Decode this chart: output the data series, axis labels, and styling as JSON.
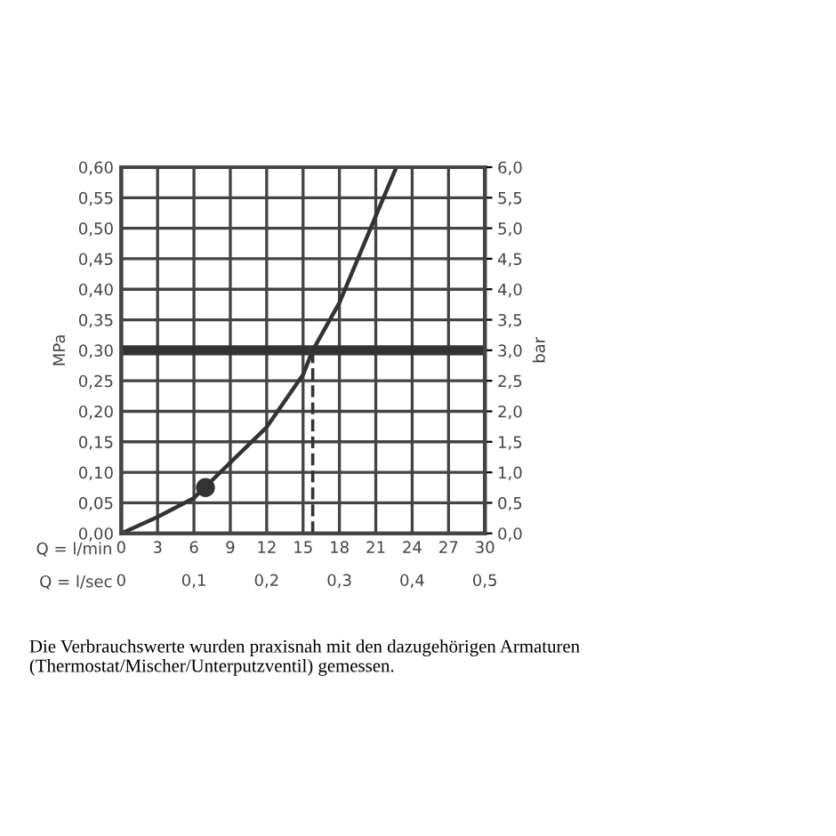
{
  "chart_data": {
    "type": "line",
    "xlabel": "Q = l/min",
    "x2label": "Q = l/sec",
    "ylabel": "MPa",
    "y2label": "bar",
    "xlim": [
      0,
      30
    ],
    "xticks": [
      0,
      3,
      6,
      9,
      12,
      15,
      18,
      21,
      24,
      27,
      30
    ],
    "x2lim": [
      0,
      0.5
    ],
    "x2ticks": [
      {
        "value": 0,
        "label": "0"
      },
      {
        "value": 0.1,
        "label": "0,1"
      },
      {
        "value": 0.2,
        "label": "0,2"
      },
      {
        "value": 0.3,
        "label": "0,3"
      },
      {
        "value": 0.4,
        "label": "0,4"
      },
      {
        "value": 0.5,
        "label": "0,5"
      }
    ],
    "ylim": [
      0,
      0.6
    ],
    "yticks": [
      {
        "value": 0,
        "label": "0,00"
      },
      {
        "value": 0.05,
        "label": "0,05"
      },
      {
        "value": 0.1,
        "label": "0,10"
      },
      {
        "value": 0.15,
        "label": "0,15"
      },
      {
        "value": 0.2,
        "label": "0,20"
      },
      {
        "value": 0.25,
        "label": "0,25"
      },
      {
        "value": 0.3,
        "label": "0,30"
      },
      {
        "value": 0.35,
        "label": "0,35"
      },
      {
        "value": 0.4,
        "label": "0,40"
      },
      {
        "value": 0.45,
        "label": "0,45"
      },
      {
        "value": 0.5,
        "label": "0,50"
      },
      {
        "value": 0.55,
        "label": "0,55"
      },
      {
        "value": 0.6,
        "label": "0,60"
      }
    ],
    "y2lim": [
      0,
      6
    ],
    "y2ticks": [
      {
        "value": 0,
        "label": "0,0"
      },
      {
        "value": 0.5,
        "label": "0,5"
      },
      {
        "value": 1,
        "label": "1,0"
      },
      {
        "value": 1.5,
        "label": "1,5"
      },
      {
        "value": 2,
        "label": "2,0"
      },
      {
        "value": 2.5,
        "label": "2,5"
      },
      {
        "value": 3,
        "label": "3,0"
      },
      {
        "value": 3.5,
        "label": "3,5"
      },
      {
        "value": 4,
        "label": "4,0"
      },
      {
        "value": 4.5,
        "label": "4,5"
      },
      {
        "value": 5,
        "label": "5,0"
      },
      {
        "value": 5.5,
        "label": "5,5"
      },
      {
        "value": 6,
        "label": "6,0"
      }
    ],
    "grid": true,
    "series": [
      {
        "color": "#333333",
        "line_style": "solid",
        "x": [
          0,
          3,
          6,
          9,
          12,
          15,
          15.8,
          18,
          21,
          22.7
        ],
        "values": [
          0,
          0.027,
          0.058,
          0.116,
          0.174,
          0.26,
          0.3,
          0.378,
          0.52,
          0.6
        ]
      },
      {
        "type": "scatter",
        "color": "#333333",
        "marker": "circle",
        "x": [
          6.95
        ],
        "values": [
          0.075
        ]
      },
      {
        "type": "line",
        "color": "#333333",
        "line_style": "dashed",
        "x": [
          15.8,
          15.8
        ],
        "values": [
          0,
          0.3
        ]
      }
    ],
    "ref_lines": [
      {
        "axis": "y",
        "value": 0.3,
        "color": "#333333",
        "line_style": "solid"
      }
    ],
    "annotations": [
      "Die Verbrauchswerte wurden praxisnah mit den dazugehörigen Armaturen (Thermostat/Mischer/Unterputzventil) gemessen."
    ]
  }
}
